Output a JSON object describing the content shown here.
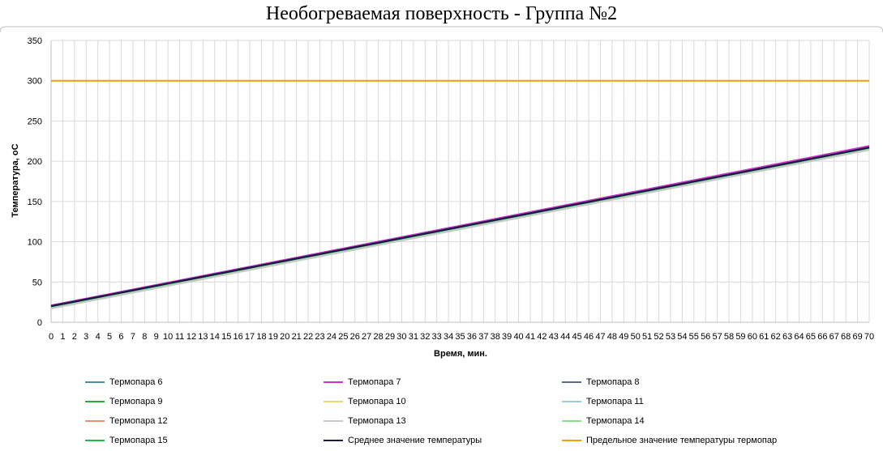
{
  "chart_data": {
    "type": "line",
    "title": "Необогреваемая поверхность - Группа №2",
    "xlabel": "Время, мин.",
    "ylabel": "Температура, оС",
    "xlim": [
      0,
      70
    ],
    "ylim": [
      0,
      350
    ],
    "yticks": [
      0,
      50,
      100,
      150,
      200,
      250,
      300,
      350
    ],
    "grid": true,
    "legend_position": "bottom",
    "series": [
      {
        "name": "Термопара 6",
        "color": "#4a8fa8",
        "start": 20,
        "end": 218
      },
      {
        "name": "Термопара 7",
        "color": "#cc33cc",
        "start": 21,
        "end": 219
      },
      {
        "name": "Термопара 8",
        "color": "#5a6b8c",
        "start": 20,
        "end": 217
      },
      {
        "name": "Термопара 9",
        "color": "#33aa33",
        "start": 20,
        "end": 217
      },
      {
        "name": "Термопара 10",
        "color": "#f0d870",
        "start": 19,
        "end": 216
      },
      {
        "name": "Термопара 11",
        "color": "#99ccdd",
        "start": 19,
        "end": 216
      },
      {
        "name": "Термопара 12",
        "color": "#e8906a",
        "start": 20,
        "end": 217
      },
      {
        "name": "Термопара 13",
        "color": "#c8c8c8",
        "start": 17,
        "end": 214
      },
      {
        "name": "Термопара 14",
        "color": "#88e088",
        "start": 19,
        "end": 216
      },
      {
        "name": "Термопара 15",
        "color": "#22bb44",
        "start": 20,
        "end": 217
      },
      {
        "name": "Среднее значение температуры",
        "color": "#1a1a4a",
        "start": 20,
        "end": 217
      },
      {
        "name": "Предельное значение температуры термопар",
        "color": "#f0a000",
        "constant": 300
      }
    ]
  }
}
